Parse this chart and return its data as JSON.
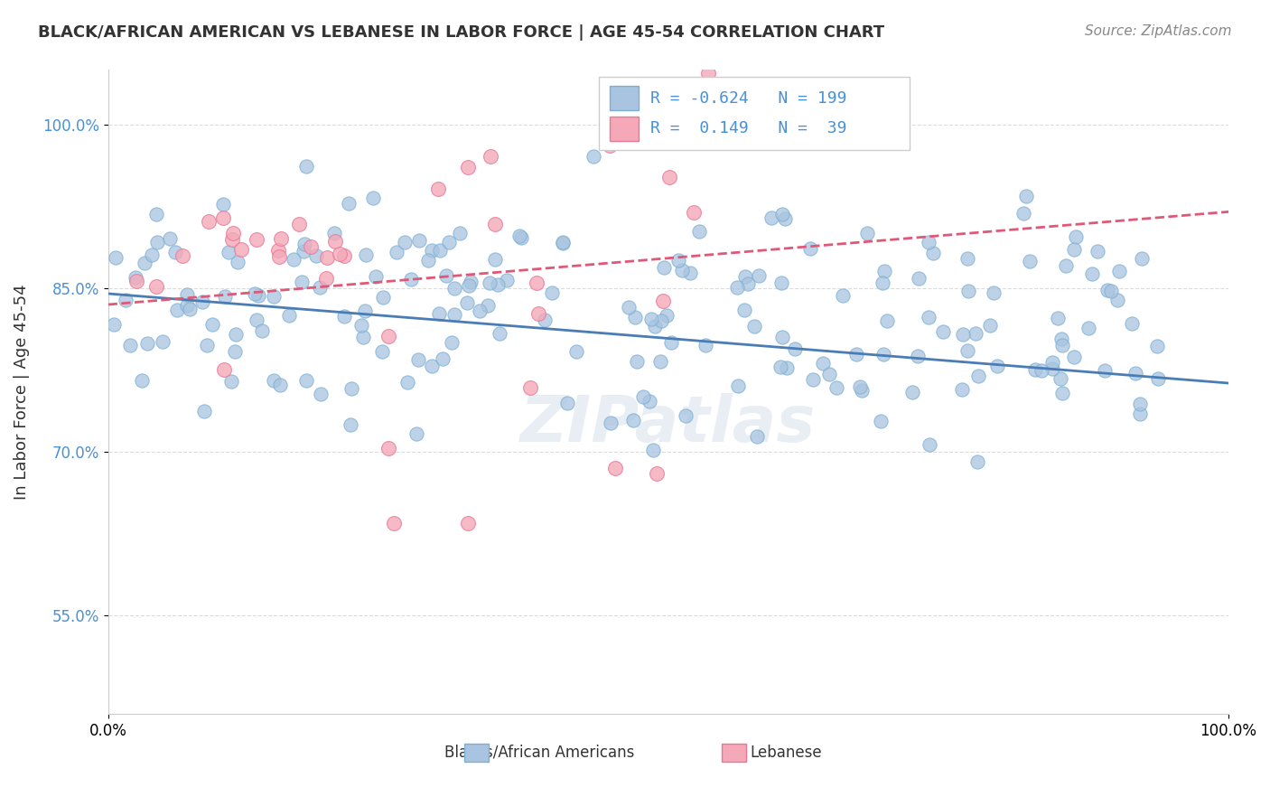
{
  "title": "BLACK/AFRICAN AMERICAN VS LEBANESE IN LABOR FORCE | AGE 45-54 CORRELATION CHART",
  "source": "Source: ZipAtlas.com",
  "ylabel": "In Labor Force | Age 45-54",
  "watermark": "ZIPatlas",
  "xlim": [
    0.0,
    1.0
  ],
  "ylim": [
    0.46,
    1.05
  ],
  "yticks": [
    0.55,
    0.7,
    0.85,
    1.0
  ],
  "ytick_labels": [
    "55.0%",
    "70.0%",
    "85.0%",
    "100.0%"
  ],
  "xticks": [
    0.0,
    1.0
  ],
  "xtick_labels": [
    "0.0%",
    "100.0%"
  ],
  "legend_R_blue": "-0.624",
  "legend_N_blue": "199",
  "legend_R_pink": "0.149",
  "legend_N_pink": "39",
  "blue_color": "#a8c4e0",
  "blue_edge": "#7bafd4",
  "pink_color": "#f4a8b8",
  "pink_edge": "#e87898",
  "blue_line_color": "#4a7cb5",
  "pink_line_color": "#e05878",
  "background_color": "#ffffff",
  "grid_color": "#cccccc",
  "title_color": "#333333",
  "blue_R": -0.624,
  "blue_N": 199,
  "pink_R": 0.149,
  "pink_N": 39,
  "blue_intercept": 0.845,
  "blue_slope": -0.082,
  "pink_intercept": 0.835,
  "pink_slope": 0.085
}
